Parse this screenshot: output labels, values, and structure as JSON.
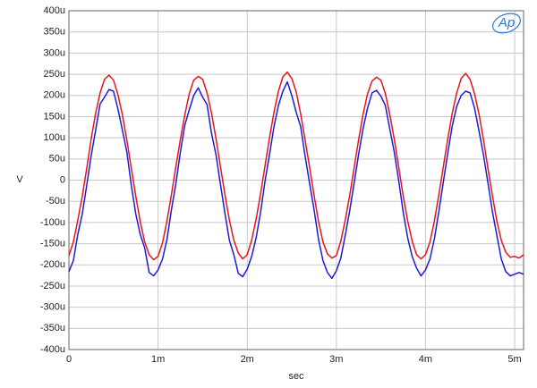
{
  "chart_data": {
    "type": "line",
    "logo_text": "Ap",
    "x_label": "sec",
    "y_label": "V",
    "grid": true,
    "xlim": [
      0,
      0.0051
    ],
    "ylim": [
      -0.0004,
      0.0004
    ],
    "xticks": [
      0,
      {
        "value": 0.001,
        "label": "1m"
      },
      {
        "value": 0.002,
        "label": "2m"
      },
      {
        "value": 0.003,
        "label": "3m"
      },
      {
        "value": 0.004,
        "label": "4m"
      },
      {
        "value": 0.005,
        "label": "5m"
      }
    ],
    "yticks": [
      {
        "value": 0.0004,
        "label": "400u"
      },
      {
        "value": 0.00035,
        "label": "350u"
      },
      {
        "value": 0.0003,
        "label": "300u"
      },
      {
        "value": 0.00025,
        "label": "250u"
      },
      {
        "value": 0.0002,
        "label": "200u"
      },
      {
        "value": 0.00015,
        "label": "150u"
      },
      {
        "value": 0.0001,
        "label": "100u"
      },
      {
        "value": 5e-05,
        "label": "50u"
      },
      0,
      {
        "value": -5e-05,
        "label": "-50u"
      },
      {
        "value": -0.0001,
        "label": "-100u"
      },
      {
        "value": -0.00015,
        "label": "-150u"
      },
      {
        "value": -0.0002,
        "label": "-200u"
      },
      {
        "value": -0.00025,
        "label": "-250u"
      },
      {
        "value": -0.0003,
        "label": "-300u"
      },
      {
        "value": -0.00035,
        "label": "-350u"
      },
      {
        "value": -0.0004,
        "label": "-400u"
      }
    ],
    "x": [
      0,
      5e-05,
      0.0001,
      0.00015,
      0.0002,
      0.00025,
      0.0003,
      0.00035,
      0.0004,
      0.00045,
      0.0005,
      0.00055,
      0.0006,
      0.00065,
      0.0007,
      0.00075,
      0.0008,
      0.00085,
      0.0009,
      0.00095,
      0.001,
      0.00105,
      0.0011,
      0.00115,
      0.0012,
      0.00125,
      0.0013,
      0.00135,
      0.0014,
      0.00145,
      0.0015,
      0.00155,
      0.0016,
      0.00165,
      0.0017,
      0.00175,
      0.0018,
      0.00185,
      0.0019,
      0.00195,
      0.002,
      0.00205,
      0.0021,
      0.00215,
      0.0022,
      0.00225,
      0.0023,
      0.00235,
      0.0024,
      0.00245,
      0.0025,
      0.00255,
      0.0026,
      0.00265,
      0.0027,
      0.00275,
      0.0028,
      0.00285,
      0.0029,
      0.00295,
      0.003,
      0.00305,
      0.0031,
      0.00315,
      0.0032,
      0.00325,
      0.0033,
      0.00335,
      0.0034,
      0.00345,
      0.0035,
      0.00355,
      0.0036,
      0.00365,
      0.0037,
      0.00375,
      0.0038,
      0.00385,
      0.0039,
      0.00395,
      0.004,
      0.00405,
      0.0041,
      0.00415,
      0.0042,
      0.00425,
      0.0043,
      0.00435,
      0.0044,
      0.00445,
      0.0045,
      0.00455,
      0.0046,
      0.00465,
      0.0047,
      0.00475,
      0.0048,
      0.00485,
      0.0049,
      0.00495,
      0.005,
      0.00505,
      0.0051
    ],
    "series": [
      {
        "color": "#1c1cd6",
        "values": [
          -0.000216,
          -0.00019,
          -0.000128,
          -8e-05,
          -1.2e-05,
          5.8e-05,
          0.000118,
          0.00018,
          0.000196,
          0.000214,
          0.00021,
          0.000168,
          0.000118,
          6.6e-05,
          -1.2e-05,
          -8e-05,
          -0.000128,
          -0.00016,
          -0.000218,
          -0.000226,
          -0.000212,
          -0.000186,
          -0.00014,
          -7e-05,
          -8e-06,
          6.6e-05,
          0.00013,
          0.000166,
          0.0002,
          0.000218,
          0.000196,
          0.000178,
          0.00011,
          6e-05,
          -1e-05,
          -7.8e-05,
          -0.000142,
          -0.000176,
          -0.00022,
          -0.000228,
          -0.00021,
          -0.00018,
          -0.000136,
          -7.6e-05,
          -2e-06,
          6e-05,
          0.000126,
          0.000176,
          0.00021,
          0.000232,
          0.0002,
          0.00016,
          0.000126,
          5.6e-05,
          -8e-06,
          -7e-05,
          -0.00014,
          -0.00019,
          -0.000218,
          -0.000232,
          -0.000214,
          -0.000184,
          -0.00013,
          -7.2e-05,
          -6e-06,
          6.2e-05,
          0.000122,
          0.00017,
          0.000206,
          0.000212,
          0.000198,
          0.000176,
          0.00012,
          6.6e-05,
          -2e-06,
          -7.6e-05,
          -0.000136,
          -0.00018,
          -0.000208,
          -0.000226,
          -0.000212,
          -0.000186,
          -0.000138,
          -7.4e-05,
          -4e-06,
          6.4e-05,
          0.000128,
          0.000174,
          0.0002,
          0.00021,
          0.000206,
          0.00017,
          0.000116,
          6e-05,
          -6e-06,
          -7.4e-05,
          -0.00013,
          -0.000186,
          -0.000216,
          -0.000226,
          -0.000222,
          -0.000218,
          -0.000222
        ]
      },
      {
        "color": "#e8141b",
        "values": [
          -0.000178,
          -0.000146,
          -9.4e-05,
          -3.8e-05,
          2.8e-05,
          9.8e-05,
          0.000158,
          0.000206,
          0.000238,
          0.000248,
          0.000236,
          0.000202,
          0.000154,
          9.4e-05,
          2.8e-05,
          -3.8e-05,
          -9.8e-05,
          -0.000146,
          -0.000176,
          -0.000188,
          -0.00018,
          -0.000148,
          -9.6e-05,
          -3.4e-05,
          3.2e-05,
          9.6e-05,
          0.000154,
          0.000204,
          0.000236,
          0.000245,
          0.000238,
          0.000206,
          0.000158,
          9.8e-05,
          3.2e-05,
          -3.4e-05,
          -9.4e-05,
          -0.000142,
          -0.000172,
          -0.000186,
          -0.000176,
          -0.000142,
          -9.2e-05,
          -3.2e-05,
          3.4e-05,
          0.0001,
          0.00016,
          0.00021,
          0.000244,
          0.000255,
          0.00024,
          0.000208,
          0.000156,
          9.4e-05,
          3e-05,
          -3.6e-05,
          -9.8e-05,
          -0.000146,
          -0.000174,
          -0.000184,
          -0.000178,
          -0.000144,
          -9.4e-05,
          -3.6e-05,
          3e-05,
          9.6e-05,
          0.000156,
          0.000204,
          0.000234,
          0.000243,
          0.000236,
          0.000204,
          0.000154,
          9.6e-05,
          3e-05,
          -3.8e-05,
          -9.6e-05,
          -0.000144,
          -0.000176,
          -0.000186,
          -0.000176,
          -0.000146,
          -9.6e-05,
          -3.4e-05,
          3.2e-05,
          9.8e-05,
          0.000158,
          0.000206,
          0.00024,
          0.000252,
          0.000238,
          0.000204,
          0.000156,
          9.6e-05,
          2.8e-05,
          -3.6e-05,
          -9.6e-05,
          -0.000142,
          -0.00017,
          -0.000182,
          -0.00018,
          -0.000184,
          -0.000176
        ]
      }
    ]
  }
}
